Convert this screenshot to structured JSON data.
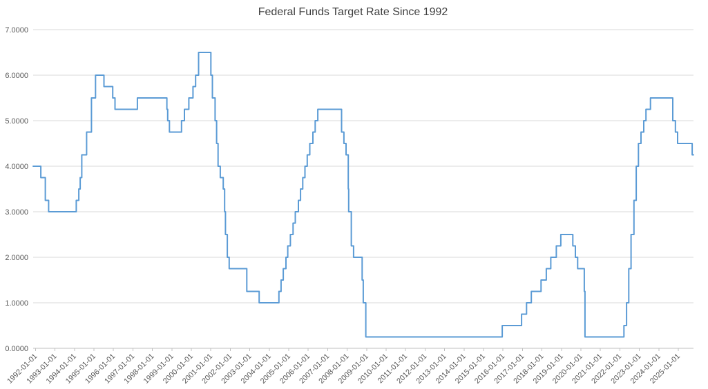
{
  "chart_data": {
    "type": "line",
    "title": "Federal Funds Target Rate Since 1992",
    "legend": "none",
    "grid": "horizontal-only",
    "ylim": [
      0,
      7
    ],
    "xlim_years": [
      1991.88,
      2025.78
    ],
    "y_tick_labels": [
      "0.0000",
      "1.0000",
      "2.0000",
      "3.0000",
      "4.0000",
      "5.0000",
      "6.0000",
      "7.0000"
    ],
    "x_tick_labels": [
      "1992-01-01",
      "1993-01-01",
      "1994-01-01",
      "1995-01-01",
      "1996-01-01",
      "1997-01-01",
      "1998-01-01",
      "1999-01-01",
      "2000-01-01",
      "2001-01-01",
      "2002-01-01",
      "2003-01-01",
      "2004-01-01",
      "2005-01-01",
      "2006-01-01",
      "2007-01-01",
      "2008-01-01",
      "2009-01-01",
      "2010-01-01",
      "2011-01-01",
      "2012-01-01",
      "2013-01-01",
      "2014-01-01",
      "2015-01-01",
      "2016-01-01",
      "2017-01-01",
      "2018-01-01",
      "2019-01-01",
      "2020-01-01",
      "2021-01-01",
      "2022-01-01",
      "2023-01-01",
      "2024-01-01",
      "2025-01-01"
    ],
    "series": [
      {
        "name": "Federal Funds Target Rate",
        "color": "#5B9BD5",
        "interpolation": "step-after",
        "points": [
          [
            "1992-01-01",
            4.0
          ],
          [
            "1992-04-09",
            3.75
          ],
          [
            "1992-07-02",
            3.25
          ],
          [
            "1992-09-04",
            3.0
          ],
          [
            "1994-02-04",
            3.25
          ],
          [
            "1994-03-22",
            3.5
          ],
          [
            "1994-04-18",
            3.75
          ],
          [
            "1994-05-17",
            4.25
          ],
          [
            "1994-08-16",
            4.75
          ],
          [
            "1994-11-15",
            5.5
          ],
          [
            "1995-02-01",
            6.0
          ],
          [
            "1995-07-06",
            5.75
          ],
          [
            "1995-12-19",
            5.5
          ],
          [
            "1996-01-31",
            5.25
          ],
          [
            "1997-03-25",
            5.5
          ],
          [
            "1998-09-29",
            5.25
          ],
          [
            "1998-10-15",
            5.0
          ],
          [
            "1998-11-17",
            4.75
          ],
          [
            "1999-06-30",
            5.0
          ],
          [
            "1999-08-24",
            5.25
          ],
          [
            "1999-11-16",
            5.5
          ],
          [
            "2000-02-02",
            5.75
          ],
          [
            "2000-03-21",
            6.0
          ],
          [
            "2000-05-16",
            6.5
          ],
          [
            "2001-01-03",
            6.0
          ],
          [
            "2001-01-31",
            5.5
          ],
          [
            "2001-03-20",
            5.0
          ],
          [
            "2001-04-18",
            4.5
          ],
          [
            "2001-05-15",
            4.0
          ],
          [
            "2001-06-27",
            3.75
          ],
          [
            "2001-08-21",
            3.5
          ],
          [
            "2001-09-17",
            3.0
          ],
          [
            "2001-10-02",
            2.5
          ],
          [
            "2001-11-06",
            2.0
          ],
          [
            "2001-12-11",
            1.75
          ],
          [
            "2002-11-06",
            1.25
          ],
          [
            "2003-06-25",
            1.0
          ],
          [
            "2004-06-30",
            1.25
          ],
          [
            "2004-08-10",
            1.5
          ],
          [
            "2004-09-21",
            1.75
          ],
          [
            "2004-11-10",
            2.0
          ],
          [
            "2004-12-14",
            2.25
          ],
          [
            "2005-02-02",
            2.5
          ],
          [
            "2005-03-22",
            2.75
          ],
          [
            "2005-05-03",
            3.0
          ],
          [
            "2005-06-30",
            3.25
          ],
          [
            "2005-08-09",
            3.5
          ],
          [
            "2005-09-20",
            3.75
          ],
          [
            "2005-11-01",
            4.0
          ],
          [
            "2005-12-13",
            4.25
          ],
          [
            "2006-01-31",
            4.5
          ],
          [
            "2006-03-28",
            4.75
          ],
          [
            "2006-05-10",
            5.0
          ],
          [
            "2006-06-29",
            5.25
          ],
          [
            "2007-09-18",
            4.75
          ],
          [
            "2007-10-31",
            4.5
          ],
          [
            "2007-12-11",
            4.25
          ],
          [
            "2008-01-22",
            3.5
          ],
          [
            "2008-01-30",
            3.0
          ],
          [
            "2008-03-18",
            2.25
          ],
          [
            "2008-04-30",
            2.0
          ],
          [
            "2008-10-08",
            1.5
          ],
          [
            "2008-10-29",
            1.0
          ],
          [
            "2008-12-16",
            0.25
          ],
          [
            "2015-12-17",
            0.5
          ],
          [
            "2016-12-15",
            0.75
          ],
          [
            "2017-03-16",
            1.0
          ],
          [
            "2017-06-15",
            1.25
          ],
          [
            "2017-12-14",
            1.5
          ],
          [
            "2018-03-22",
            1.75
          ],
          [
            "2018-06-14",
            2.0
          ],
          [
            "2018-09-27",
            2.25
          ],
          [
            "2018-12-20",
            2.5
          ],
          [
            "2019-08-01",
            2.25
          ],
          [
            "2019-09-19",
            2.0
          ],
          [
            "2019-10-31",
            1.75
          ],
          [
            "2020-03-04",
            1.25
          ],
          [
            "2020-03-16",
            0.25
          ],
          [
            "2022-03-17",
            0.5
          ],
          [
            "2022-05-05",
            1.0
          ],
          [
            "2022-06-16",
            1.75
          ],
          [
            "2022-07-28",
            2.5
          ],
          [
            "2022-09-22",
            3.25
          ],
          [
            "2022-11-03",
            4.0
          ],
          [
            "2022-12-15",
            4.5
          ],
          [
            "2023-02-02",
            4.75
          ],
          [
            "2023-03-23",
            5.0
          ],
          [
            "2023-05-04",
            5.25
          ],
          [
            "2023-07-27",
            5.5
          ],
          [
            "2024-09-19",
            5.0
          ],
          [
            "2024-11-08",
            4.75
          ],
          [
            "2024-12-19",
            4.5
          ],
          [
            "2025-09-18",
            4.25
          ]
        ]
      }
    ],
    "colors": {
      "line": "#5B9BD5",
      "gridline": "#D9D9D9",
      "axis": "#BFBFBF",
      "tick_label": "#595959",
      "title": "#3D3D3D"
    }
  }
}
